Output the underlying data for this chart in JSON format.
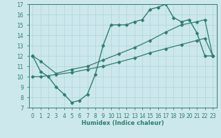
{
  "xlabel": "Humidex (Indice chaleur)",
  "xlim_min": -0.5,
  "xlim_max": 23.5,
  "ylim_min": 7,
  "ylim_max": 17,
  "xticks": [
    0,
    1,
    2,
    3,
    4,
    5,
    6,
    7,
    8,
    9,
    10,
    11,
    12,
    13,
    14,
    15,
    16,
    17,
    18,
    19,
    20,
    21,
    22,
    23
  ],
  "yticks": [
    7,
    8,
    9,
    10,
    11,
    12,
    13,
    14,
    15,
    16,
    17
  ],
  "bg_color": "#cce8ec",
  "line_color": "#2e7d6b",
  "grid_color": "#b2d8dc",
  "line1_x": [
    0,
    1,
    2,
    3,
    4,
    5,
    6,
    7,
    8,
    9,
    10,
    11,
    12,
    13,
    14,
    15,
    16,
    17,
    18,
    19,
    20,
    21,
    22,
    23
  ],
  "line1_y": [
    12.0,
    10.5,
    10.0,
    9.0,
    8.3,
    7.5,
    7.7,
    8.3,
    10.2,
    13.0,
    15.0,
    15.0,
    15.0,
    15.3,
    15.5,
    16.5,
    16.7,
    17.0,
    15.7,
    15.3,
    15.5,
    14.2,
    12.0,
    12.0
  ],
  "line2_x": [
    0,
    1,
    3,
    5,
    7,
    9,
    11,
    13,
    15,
    17,
    19,
    21,
    22,
    23
  ],
  "line2_y": [
    10.0,
    10.0,
    10.2,
    10.4,
    10.7,
    11.0,
    11.4,
    11.8,
    12.3,
    12.7,
    13.1,
    13.5,
    13.7,
    12.0
  ],
  "line3_x": [
    0,
    1,
    3,
    5,
    7,
    9,
    11,
    13,
    15,
    17,
    19,
    21,
    22,
    23
  ],
  "line3_y": [
    12.0,
    11.5,
    10.3,
    10.7,
    11.0,
    11.6,
    12.2,
    12.8,
    13.5,
    14.3,
    15.0,
    15.3,
    15.5,
    12.0
  ]
}
